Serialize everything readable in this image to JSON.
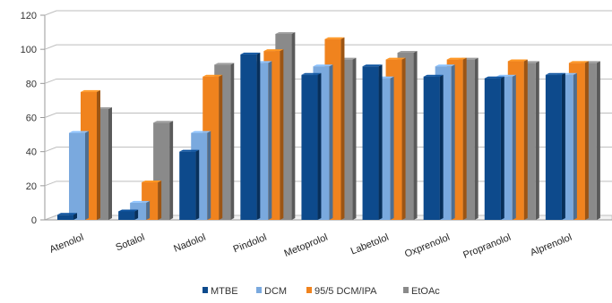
{
  "chart_data": {
    "type": "bar",
    "categories": [
      "Atenolol",
      "Sotalol",
      "Nadolol",
      "Pindolol",
      "Metoprolol",
      "Labetolol",
      "Oxprenolol",
      "Propranolol",
      "Alprenolol"
    ],
    "series": [
      {
        "name": "MTBE",
        "color": "#0d4a8c",
        "values": [
          3,
          5,
          40,
          97,
          85,
          90,
          84,
          83,
          85
        ]
      },
      {
        "name": "DCM",
        "color": "#7aa9de",
        "values": [
          51,
          10,
          51,
          92,
          90,
          83,
          90,
          84,
          85
        ]
      },
      {
        "name": "95/5 DCM/IPA",
        "color": "#f0831e",
        "values": [
          75,
          22,
          84,
          99,
          106,
          94,
          94,
          93,
          92
        ]
      },
      {
        "name": "EtOAc",
        "color": "#8a8a8a",
        "values": [
          65,
          57,
          91,
          109,
          94,
          98,
          94,
          92,
          92
        ]
      }
    ],
    "yticks": [
      "0",
      "20",
      "40",
      "60",
      "80",
      "100",
      "120"
    ],
    "ylim": [
      0,
      120
    ],
    "grid": true,
    "legend_position": "bottom",
    "xlabel": "",
    "ylabel": "",
    "title": ""
  }
}
